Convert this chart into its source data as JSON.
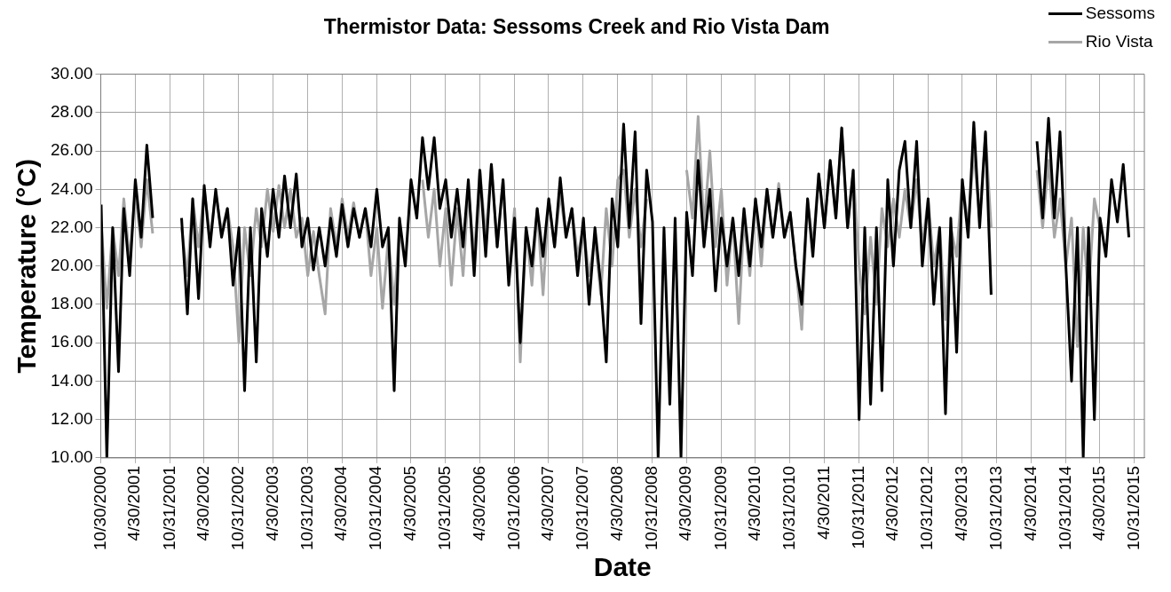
{
  "chart_data": {
    "type": "line",
    "title": "Thermistor Data: Sessoms Creek and Rio Vista Dam",
    "xlabel": "Date",
    "ylabel": "Temperature (°C)",
    "x": [
      "2000-11",
      "2000-12",
      "2001-01",
      "2001-02",
      "2001-03",
      "2001-04",
      "2001-05",
      "2001-06",
      "2001-07",
      "2001-08",
      "2001-09",
      "2001-10",
      "2001-11",
      "2001-12",
      "2002-01",
      "2002-02",
      "2002-03",
      "2002-04",
      "2002-05",
      "2002-06",
      "2002-07",
      "2002-08",
      "2002-09",
      "2002-10",
      "2002-11",
      "2002-12",
      "2003-01",
      "2003-02",
      "2003-03",
      "2003-04",
      "2003-05",
      "2003-06",
      "2003-07",
      "2003-08",
      "2003-09",
      "2003-10",
      "2003-11",
      "2003-12",
      "2004-01",
      "2004-02",
      "2004-03",
      "2004-04",
      "2004-05",
      "2004-06",
      "2004-07",
      "2004-08",
      "2004-09",
      "2004-10",
      "2004-11",
      "2004-12",
      "2005-01",
      "2005-02",
      "2005-03",
      "2005-04",
      "2005-05",
      "2005-06",
      "2005-07",
      "2005-08",
      "2005-09",
      "2005-10",
      "2005-11",
      "2005-12",
      "2006-01",
      "2006-02",
      "2006-03",
      "2006-04",
      "2006-05",
      "2006-06",
      "2006-07",
      "2006-08",
      "2006-09",
      "2006-10",
      "2006-11",
      "2006-12",
      "2007-01",
      "2007-02",
      "2007-03",
      "2007-04",
      "2007-05",
      "2007-06",
      "2007-07",
      "2007-08",
      "2007-09",
      "2007-10",
      "2007-11",
      "2007-12",
      "2008-01",
      "2008-02",
      "2008-03",
      "2008-04",
      "2008-05",
      "2008-06",
      "2008-07",
      "2008-08",
      "2008-09",
      "2008-10",
      "2008-11",
      "2008-12",
      "2009-01",
      "2009-02",
      "2009-03",
      "2009-04",
      "2009-05",
      "2009-06",
      "2009-07",
      "2009-08",
      "2009-09",
      "2009-10",
      "2009-11",
      "2009-12",
      "2010-01",
      "2010-02",
      "2010-03",
      "2010-04",
      "2010-05",
      "2010-06",
      "2010-07",
      "2010-08",
      "2010-09",
      "2010-10",
      "2010-11",
      "2010-12",
      "2011-01",
      "2011-02",
      "2011-03",
      "2011-04",
      "2011-05",
      "2011-06",
      "2011-07",
      "2011-08",
      "2011-09",
      "2011-10",
      "2011-11",
      "2011-12",
      "2012-01",
      "2012-02",
      "2012-03",
      "2012-04",
      "2012-05",
      "2012-06",
      "2012-07",
      "2012-08",
      "2012-09",
      "2012-10",
      "2012-11",
      "2012-12",
      "2013-01",
      "2013-02",
      "2013-03",
      "2013-04",
      "2013-05",
      "2013-06",
      "2013-07",
      "2013-08",
      "2013-09",
      "2013-10",
      "2013-11",
      "2013-12",
      "2014-01",
      "2014-02",
      "2014-03",
      "2014-04",
      "2014-05",
      "2014-06",
      "2014-07",
      "2014-08",
      "2014-09",
      "2014-10",
      "2014-11",
      "2014-12",
      "2015-01",
      "2015-02",
      "2015-03",
      "2015-04",
      "2015-05",
      "2015-06",
      "2015-07",
      "2015-08",
      "2015-09",
      "2015-10"
    ],
    "series": [
      {
        "name": "Sessoms",
        "color": "#000000",
        "values": [
          23.2,
          10.0,
          22.0,
          14.5,
          23.0,
          19.5,
          24.5,
          21.5,
          26.3,
          22.5,
          null,
          null,
          null,
          null,
          22.5,
          17.5,
          23.5,
          18.3,
          24.2,
          21.0,
          24.0,
          21.5,
          23.0,
          19.0,
          22.0,
          13.5,
          22.0,
          15.0,
          23.0,
          20.5,
          24.0,
          21.5,
          24.7,
          22.0,
          24.8,
          21.0,
          22.5,
          19.8,
          22.0,
          20.0,
          22.5,
          20.5,
          23.2,
          21.0,
          23.0,
          21.5,
          23.0,
          21.0,
          24.0,
          21.0,
          22.0,
          13.5,
          22.5,
          20.0,
          24.5,
          22.5,
          26.7,
          24.0,
          26.7,
          23.0,
          24.5,
          21.5,
          24.0,
          21.0,
          24.5,
          19.5,
          25.0,
          20.5,
          25.3,
          21.0,
          24.5,
          19.0,
          22.5,
          16.0,
          22.0,
          20.0,
          23.0,
          20.5,
          23.5,
          21.0,
          24.6,
          21.5,
          23.0,
          19.5,
          22.5,
          18.0,
          22.0,
          19.0,
          15.0,
          23.5,
          21.0,
          27.4,
          22.0,
          27.0,
          17.0,
          25.0,
          22.3,
          10.0,
          22.0,
          12.8,
          22.5,
          10.0,
          22.8,
          19.5,
          25.5,
          21.0,
          24.0,
          18.7,
          22.5,
          20.0,
          22.5,
          19.5,
          23.0,
          20.0,
          23.5,
          21.0,
          24.0,
          21.5,
          24.0,
          21.5,
          22.8,
          20.0,
          18.0,
          23.5,
          20.5,
          24.8,
          22.0,
          25.5,
          22.5,
          27.2,
          22.0,
          25.0,
          12.0,
          22.0,
          12.8,
          22.0,
          13.5,
          24.5,
          20.0,
          25.0,
          26.5,
          22.0,
          26.5,
          20.0,
          23.5,
          18.0,
          22.0,
          12.3,
          22.5,
          15.5,
          24.5,
          21.5,
          27.5,
          22.0,
          27.0,
          18.5,
          null,
          null,
          null,
          null,
          null,
          null,
          null,
          26.5,
          22.5,
          27.7,
          22.5,
          27.0,
          20.0,
          14.0,
          22.0,
          10.0,
          22.0,
          12.0,
          22.5,
          20.5,
          24.5,
          22.3,
          25.3,
          21.5
        ]
      },
      {
        "name": "Rio Vista",
        "color": "#a6a6a6",
        "values": [
          22.2,
          17.8,
          22.0,
          19.5,
          23.5,
          20.3,
          24.0,
          21.0,
          24.5,
          21.7,
          null,
          null,
          null,
          null,
          22.0,
          19.5,
          23.5,
          21.0,
          24.0,
          21.5,
          23.8,
          21.8,
          23.0,
          21.0,
          16.0,
          22.0,
          19.5,
          23.0,
          21.0,
          24.0,
          21.8,
          24.2,
          22.0,
          24.0,
          21.5,
          22.5,
          19.5,
          21.8,
          19.5,
          17.5,
          23.0,
          21.0,
          23.5,
          21.5,
          23.3,
          21.5,
          23.0,
          19.5,
          22.0,
          17.8,
          21.5,
          18.0,
          22.0,
          20.0,
          null,
          null,
          24.5,
          21.5,
          24.0,
          20.0,
          23.0,
          19.0,
          23.0,
          19.5,
          24.0,
          20.5,
          25.0,
          21.5,
          25.3,
          21.0,
          24.5,
          19.5,
          23.0,
          15.0,
          22.0,
          19.0,
          23.0,
          18.5,
          23.5,
          21.0,
          23.8,
          21.5,
          23.0,
          20.5,
          22.0,
          19.5,
          21.5,
          18.5,
          23.0,
          20.0,
          24.5,
          25.0,
          21.5,
          24.0,
          21.0,
          23.5,
          null,
          null,
          null,
          null,
          null,
          null,
          25.0,
          22.5,
          27.8,
          22.0,
          26.0,
          21.0,
          24.0,
          19.0,
          22.5,
          17.0,
          22.5,
          19.5,
          23.5,
          20.0,
          24.0,
          21.5,
          24.3,
          21.5,
          22.8,
          20.0,
          16.7,
          23.5,
          21.0,
          24.8,
          22.0,
          25.5,
          22.5,
          27.2,
          22.0,
          25.0,
          20.0,
          17.5,
          21.5,
          18.0,
          23.0,
          21.0,
          23.5,
          21.5,
          24.0,
          22.0,
          24.5,
          21.0,
          23.5,
          20.0,
          22.0,
          17.2,
          22.0,
          20.5,
          24.5,
          22.0,
          26.0,
          22.5,
          26.9,
          22.0,
          null,
          null,
          null,
          null,
          null,
          null,
          null,
          25.0,
          22.0,
          25.5,
          21.5,
          23.5,
          20.0,
          22.5,
          15.8,
          22.0,
          18.5,
          23.5,
          22.0,
          null,
          null,
          null,
          null,
          null
        ]
      }
    ],
    "xlim": [
      "2000-10-30",
      "2015-12-22"
    ],
    "xticks": [
      {
        "value": "2000-10-30",
        "label": "10/30/2000"
      },
      {
        "value": "2001-04-30",
        "label": "4/30/2001"
      },
      {
        "value": "2001-10-31",
        "label": "10/31/2001"
      },
      {
        "value": "2002-04-30",
        "label": "4/30/2002"
      },
      {
        "value": "2002-10-31",
        "label": "10/31/2002"
      },
      {
        "value": "2003-04-30",
        "label": "4/30/2003"
      },
      {
        "value": "2003-10-31",
        "label": "10/31/2003"
      },
      {
        "value": "2004-04-30",
        "label": "4/30/2004"
      },
      {
        "value": "2004-10-31",
        "label": "10/31/2004"
      },
      {
        "value": "2005-04-30",
        "label": "4/30/2005"
      },
      {
        "value": "2005-10-31",
        "label": "10/31/2005"
      },
      {
        "value": "2006-04-30",
        "label": "4/30/2006"
      },
      {
        "value": "2006-10-31",
        "label": "10/31/2006"
      },
      {
        "value": "2007-04-30",
        "label": "4/30/2007"
      },
      {
        "value": "2007-10-31",
        "label": "10/31/2007"
      },
      {
        "value": "2008-04-30",
        "label": "4/30/2008"
      },
      {
        "value": "2008-10-31",
        "label": "10/31/2008"
      },
      {
        "value": "2009-04-30",
        "label": "4/30/2009"
      },
      {
        "value": "2009-10-31",
        "label": "10/31/2009"
      },
      {
        "value": "2010-04-30",
        "label": "4/30/2010"
      },
      {
        "value": "2010-10-31",
        "label": "10/31/2010"
      },
      {
        "value": "2011-04-30",
        "label": "4/30/2011"
      },
      {
        "value": "2011-10-31",
        "label": "10/31/2011"
      },
      {
        "value": "2012-04-30",
        "label": "4/30/2012"
      },
      {
        "value": "2012-10-31",
        "label": "10/31/2012"
      },
      {
        "value": "2013-04-30",
        "label": "4/30/2013"
      },
      {
        "value": "2013-10-31",
        "label": "10/31/2013"
      },
      {
        "value": "2014-04-30",
        "label": "4/30/2014"
      },
      {
        "value": "2014-10-31",
        "label": "10/31/2014"
      },
      {
        "value": "2015-04-30",
        "label": "4/30/2015"
      },
      {
        "value": "2015-10-31",
        "label": "10/31/2015"
      }
    ],
    "ylim": [
      10,
      30
    ],
    "yticks": [
      {
        "value": 10,
        "label": "10.00"
      },
      {
        "value": 12,
        "label": "12.00"
      },
      {
        "value": 14,
        "label": "14.00"
      },
      {
        "value": 16,
        "label": "16.00"
      },
      {
        "value": 18,
        "label": "18.00"
      },
      {
        "value": 20,
        "label": "20.00"
      },
      {
        "value": 22,
        "label": "22.00"
      },
      {
        "value": 24,
        "label": "24.00"
      },
      {
        "value": 26,
        "label": "26.00"
      },
      {
        "value": 28,
        "label": "28.00"
      },
      {
        "value": 30,
        "label": "30.00"
      }
    ],
    "grid": true,
    "legend": "top right",
    "marker": "none",
    "line_style": "solid"
  }
}
